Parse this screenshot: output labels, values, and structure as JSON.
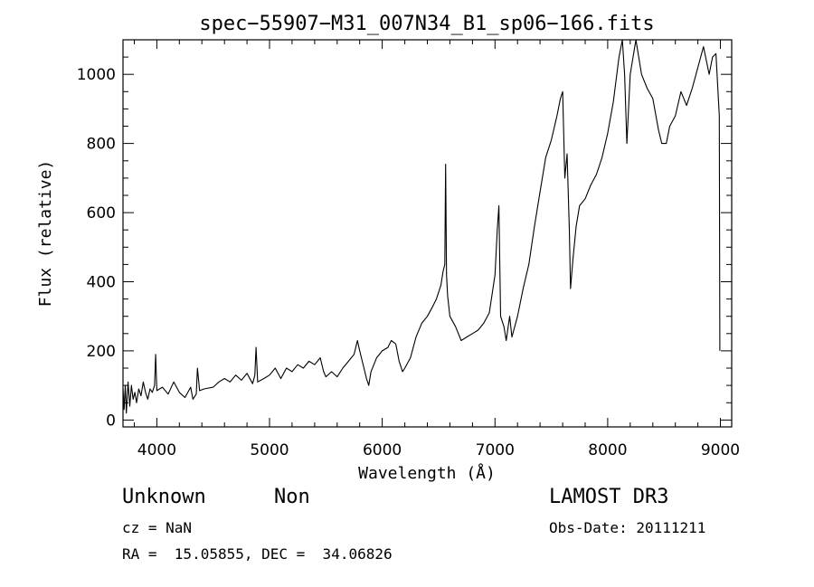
{
  "chart_data": {
    "type": "line",
    "title": "spec−55907−M31_007N34_B1_sp06−166.fits",
    "xlabel": "Wavelength (Å)",
    "ylabel": "Flux (relative)",
    "xlim": [
      3700,
      9100
    ],
    "ylim": [
      -20,
      1100
    ],
    "x_ticks": [
      4000,
      5000,
      6000,
      7000,
      8000,
      9000
    ],
    "y_ticks": [
      0,
      200,
      400,
      600,
      800,
      1000
    ],
    "series": [
      {
        "name": "spectrum",
        "points": [
          [
            3700,
            90
          ],
          [
            3710,
            30
          ],
          [
            3720,
            100
          ],
          [
            3730,
            20
          ],
          [
            3745,
            110
          ],
          [
            3760,
            40
          ],
          [
            3775,
            100
          ],
          [
            3790,
            60
          ],
          [
            3805,
            80
          ],
          [
            3820,
            50
          ],
          [
            3840,
            90
          ],
          [
            3860,
            70
          ],
          [
            3880,
            110
          ],
          [
            3900,
            80
          ],
          [
            3920,
            60
          ],
          [
            3940,
            90
          ],
          [
            3960,
            80
          ],
          [
            3980,
            100
          ],
          [
            3990,
            190
          ],
          [
            4000,
            85
          ],
          [
            4050,
            95
          ],
          [
            4100,
            75
          ],
          [
            4150,
            110
          ],
          [
            4200,
            80
          ],
          [
            4250,
            65
          ],
          [
            4300,
            95
          ],
          [
            4320,
            60
          ],
          [
            4350,
            75
          ],
          [
            4360,
            150
          ],
          [
            4380,
            85
          ],
          [
            4420,
            90
          ],
          [
            4500,
            95
          ],
          [
            4550,
            110
          ],
          [
            4600,
            120
          ],
          [
            4650,
            110
          ],
          [
            4700,
            130
          ],
          [
            4750,
            115
          ],
          [
            4800,
            135
          ],
          [
            4850,
            105
          ],
          [
            4870,
            130
          ],
          [
            4880,
            210
          ],
          [
            4895,
            110
          ],
          [
            4950,
            120
          ],
          [
            5000,
            130
          ],
          [
            5050,
            150
          ],
          [
            5100,
            120
          ],
          [
            5150,
            150
          ],
          [
            5200,
            140
          ],
          [
            5250,
            160
          ],
          [
            5300,
            150
          ],
          [
            5350,
            170
          ],
          [
            5400,
            160
          ],
          [
            5450,
            180
          ],
          [
            5480,
            140
          ],
          [
            5500,
            125
          ],
          [
            5550,
            140
          ],
          [
            5600,
            125
          ],
          [
            5650,
            150
          ],
          [
            5700,
            170
          ],
          [
            5750,
            190
          ],
          [
            5780,
            230
          ],
          [
            5800,
            200
          ],
          [
            5830,
            160
          ],
          [
            5860,
            120
          ],
          [
            5880,
            100
          ],
          [
            5900,
            140
          ],
          [
            5950,
            180
          ],
          [
            6000,
            200
          ],
          [
            6050,
            210
          ],
          [
            6080,
            230
          ],
          [
            6120,
            220
          ],
          [
            6150,
            170
          ],
          [
            6180,
            140
          ],
          [
            6200,
            150
          ],
          [
            6250,
            180
          ],
          [
            6300,
            240
          ],
          [
            6350,
            280
          ],
          [
            6400,
            300
          ],
          [
            6450,
            330
          ],
          [
            6480,
            350
          ],
          [
            6520,
            390
          ],
          [
            6540,
            430
          ],
          [
            6555,
            450
          ],
          [
            6562,
            740
          ],
          [
            6570,
            420
          ],
          [
            6580,
            360
          ],
          [
            6600,
            300
          ],
          [
            6650,
            270
          ],
          [
            6700,
            230
          ],
          [
            6750,
            240
          ],
          [
            6800,
            250
          ],
          [
            6850,
            260
          ],
          [
            6900,
            280
          ],
          [
            6950,
            310
          ],
          [
            7000,
            420
          ],
          [
            7020,
            550
          ],
          [
            7035,
            620
          ],
          [
            7050,
            300
          ],
          [
            7080,
            270
          ],
          [
            7100,
            230
          ],
          [
            7130,
            300
          ],
          [
            7150,
            240
          ],
          [
            7200,
            300
          ],
          [
            7250,
            380
          ],
          [
            7300,
            450
          ],
          [
            7350,
            560
          ],
          [
            7400,
            660
          ],
          [
            7450,
            760
          ],
          [
            7500,
            810
          ],
          [
            7550,
            880
          ],
          [
            7580,
            930
          ],
          [
            7600,
            950
          ],
          [
            7620,
            700
          ],
          [
            7640,
            770
          ],
          [
            7660,
            550
          ],
          [
            7670,
            380
          ],
          [
            7690,
            460
          ],
          [
            7720,
            560
          ],
          [
            7750,
            620
          ],
          [
            7800,
            640
          ],
          [
            7850,
            680
          ],
          [
            7900,
            710
          ],
          [
            7950,
            760
          ],
          [
            8000,
            830
          ],
          [
            8050,
            920
          ],
          [
            8100,
            1050
          ],
          [
            8130,
            1100
          ],
          [
            8150,
            1000
          ],
          [
            8170,
            800
          ],
          [
            8200,
            1000
          ],
          [
            8250,
            1100
          ],
          [
            8300,
            1000
          ],
          [
            8350,
            960
          ],
          [
            8400,
            930
          ],
          [
            8450,
            840
          ],
          [
            8480,
            800
          ],
          [
            8520,
            800
          ],
          [
            8550,
            850
          ],
          [
            8600,
            880
          ],
          [
            8650,
            950
          ],
          [
            8700,
            910
          ],
          [
            8750,
            960
          ],
          [
            8800,
            1020
          ],
          [
            8850,
            1080
          ],
          [
            8900,
            1000
          ],
          [
            8930,
            1050
          ],
          [
            8960,
            1060
          ],
          [
            8990,
            880
          ],
          [
            8995,
            200
          ]
        ]
      }
    ]
  },
  "info": {
    "object_class": "Unknown",
    "object_subclass": "Non",
    "survey": "LAMOST DR3",
    "redshift": "cz = NaN",
    "obs_date": "Obs-Date: 20111211",
    "coordinates": "RA =  15.05855, DEC =  34.06826"
  }
}
